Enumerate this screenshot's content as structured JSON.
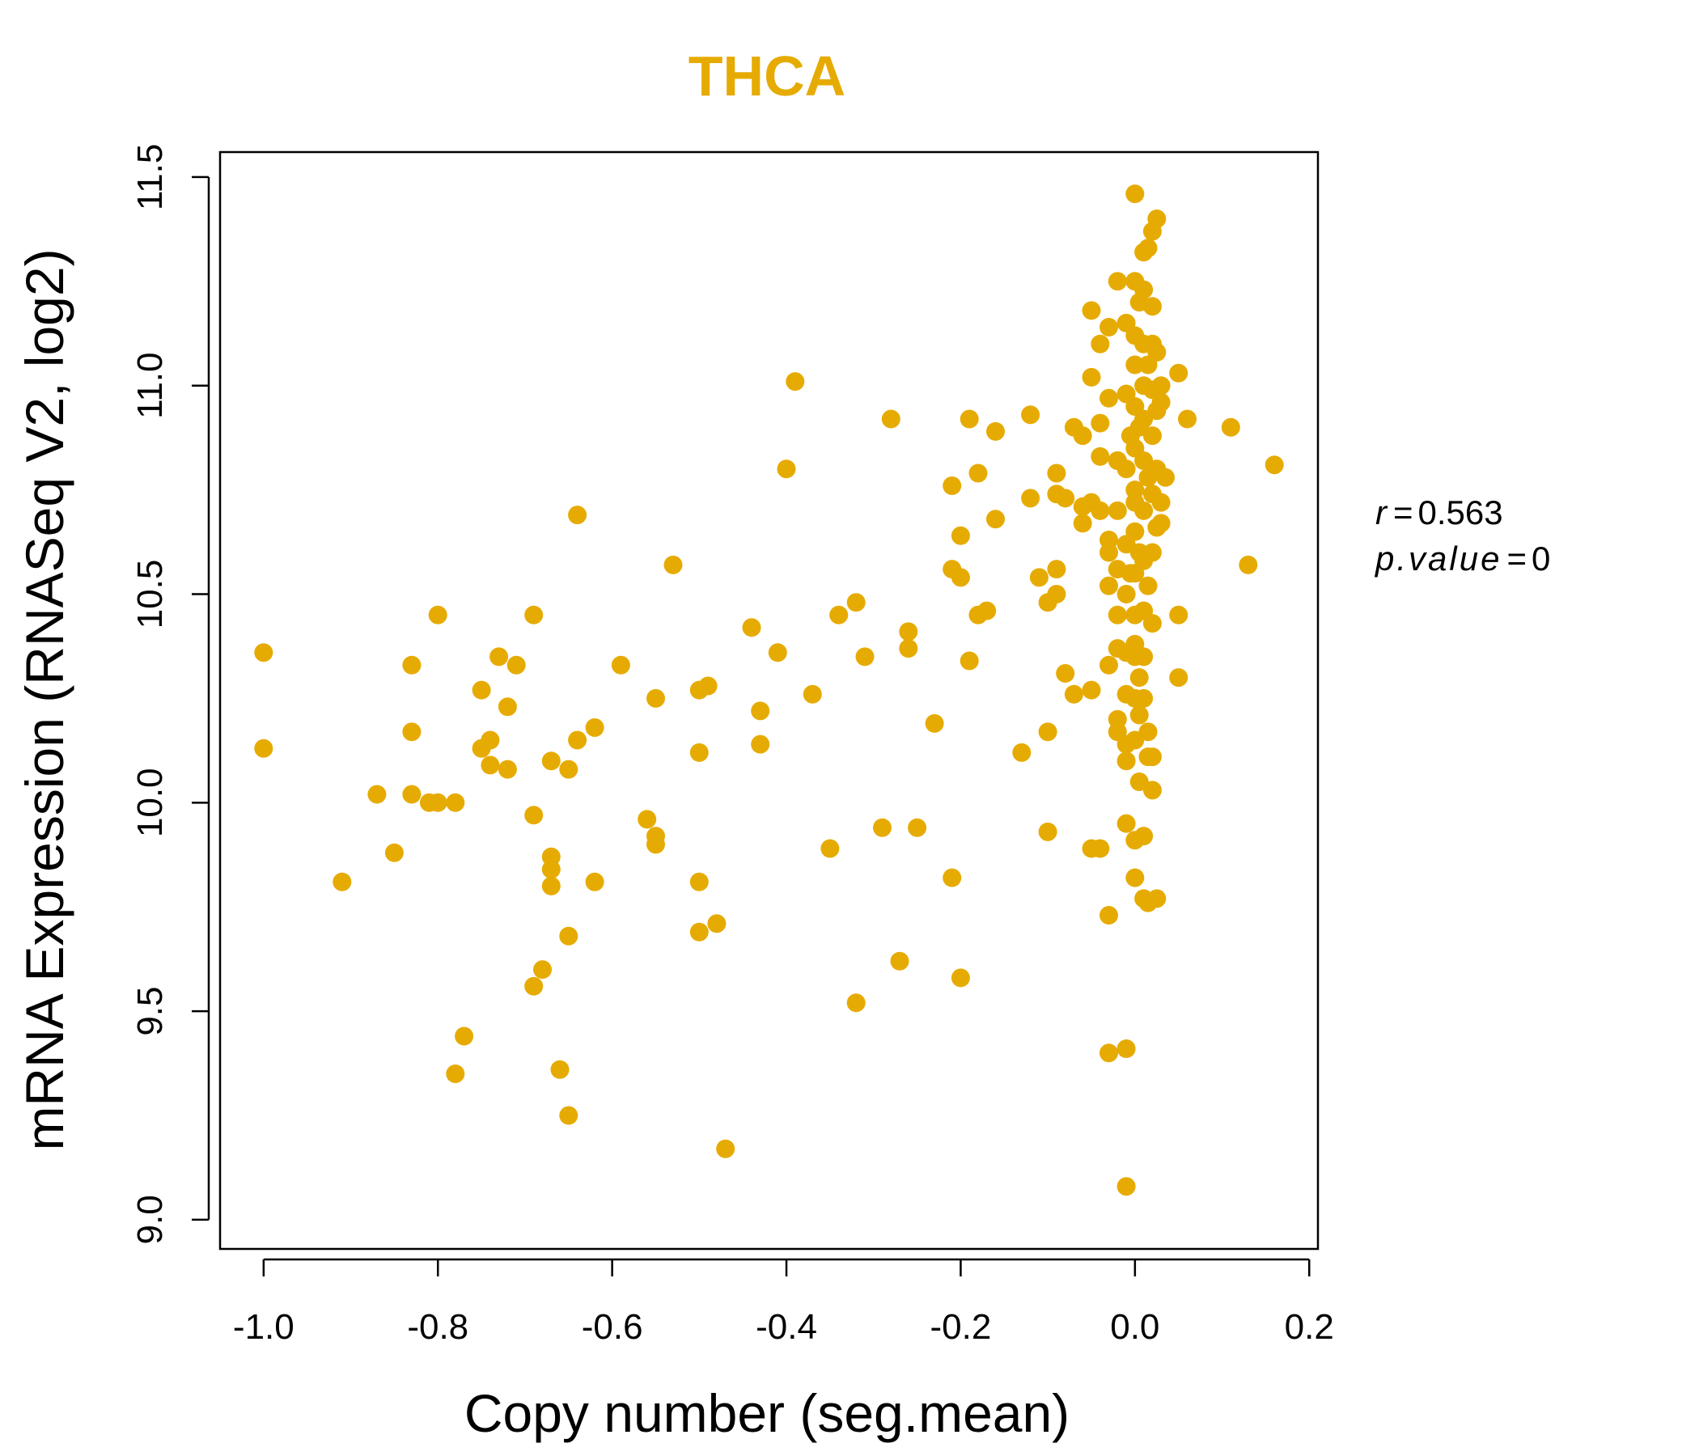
{
  "chart_data": {
    "type": "scatter",
    "title": "THCA",
    "xlabel": "Copy number (seg.mean)",
    "ylabel": "mRNA Expression (RNASeq V2, log2)",
    "xlim": [
      -1.05,
      0.21
    ],
    "ylim": [
      8.93,
      11.56
    ],
    "xticks": [
      "-1.0",
      "-0.8",
      "-0.6",
      "-0.4",
      "-0.2",
      "0.0",
      "0.2"
    ],
    "yticks": [
      "9.0",
      "9.5",
      "10.0",
      "10.5",
      "11.0",
      "11.5"
    ],
    "stats": {
      "r_label": "r",
      "r_value": "0.563",
      "p_label": "p.value",
      "p_value": "0"
    },
    "colors": {
      "title": "#E6AB02",
      "points": "#E6AB02",
      "axis": "#000000"
    },
    "points": [
      [
        -1.0,
        10.36
      ],
      [
        -1.0,
        10.13
      ],
      [
        -0.91,
        9.81
      ],
      [
        -0.87,
        10.02
      ],
      [
        -0.85,
        9.88
      ],
      [
        -0.83,
        10.33
      ],
      [
        -0.83,
        10.17
      ],
      [
        -0.83,
        10.02
      ],
      [
        -0.81,
        10.0
      ],
      [
        -0.8,
        10.45
      ],
      [
        -0.8,
        10.0
      ],
      [
        -0.78,
        10.0
      ],
      [
        -0.78,
        9.35
      ],
      [
        -0.77,
        9.44
      ],
      [
        -0.75,
        10.27
      ],
      [
        -0.75,
        10.13
      ],
      [
        -0.74,
        10.09
      ],
      [
        -0.74,
        10.15
      ],
      [
        -0.73,
        10.35
      ],
      [
        -0.72,
        10.23
      ],
      [
        -0.72,
        10.08
      ],
      [
        -0.71,
        10.33
      ],
      [
        -0.69,
        10.45
      ],
      [
        -0.69,
        9.97
      ],
      [
        -0.69,
        9.56
      ],
      [
        -0.68,
        9.6
      ],
      [
        -0.67,
        9.87
      ],
      [
        -0.67,
        9.84
      ],
      [
        -0.67,
        9.8
      ],
      [
        -0.67,
        10.1
      ],
      [
        -0.66,
        9.36
      ],
      [
        -0.65,
        9.68
      ],
      [
        -0.65,
        9.25
      ],
      [
        -0.65,
        10.08
      ],
      [
        -0.64,
        10.15
      ],
      [
        -0.64,
        10.69
      ],
      [
        -0.62,
        10.18
      ],
      [
        -0.62,
        9.81
      ],
      [
        -0.59,
        10.33
      ],
      [
        -0.56,
        9.96
      ],
      [
        -0.55,
        9.92
      ],
      [
        -0.55,
        9.9
      ],
      [
        -0.55,
        10.25
      ],
      [
        -0.53,
        10.57
      ],
      [
        -0.5,
        9.81
      ],
      [
        -0.5,
        9.69
      ],
      [
        -0.5,
        10.27
      ],
      [
        -0.5,
        10.12
      ],
      [
        -0.49,
        10.28
      ],
      [
        -0.48,
        9.71
      ],
      [
        -0.47,
        9.17
      ],
      [
        -0.44,
        10.42
      ],
      [
        -0.43,
        10.22
      ],
      [
        -0.43,
        10.14
      ],
      [
        -0.41,
        10.36
      ],
      [
        -0.4,
        10.8
      ],
      [
        -0.39,
        11.01
      ],
      [
        -0.37,
        10.26
      ],
      [
        -0.35,
        9.89
      ],
      [
        -0.34,
        10.45
      ],
      [
        -0.32,
        9.52
      ],
      [
        -0.32,
        10.48
      ],
      [
        -0.31,
        10.35
      ],
      [
        -0.29,
        9.94
      ],
      [
        -0.28,
        10.92
      ],
      [
        -0.27,
        9.62
      ],
      [
        -0.26,
        10.41
      ],
      [
        -0.26,
        10.37
      ],
      [
        -0.25,
        9.94
      ],
      [
        -0.23,
        10.19
      ],
      [
        -0.21,
        10.76
      ],
      [
        -0.21,
        10.56
      ],
      [
        -0.21,
        9.82
      ],
      [
        -0.2,
        9.58
      ],
      [
        -0.2,
        10.54
      ],
      [
        -0.2,
        10.64
      ],
      [
        -0.19,
        10.92
      ],
      [
        -0.19,
        10.34
      ],
      [
        -0.18,
        10.79
      ],
      [
        -0.18,
        10.45
      ],
      [
        -0.17,
        10.46
      ],
      [
        -0.16,
        10.89
      ],
      [
        -0.16,
        10.68
      ],
      [
        -0.13,
        10.12
      ],
      [
        -0.12,
        10.93
      ],
      [
        -0.12,
        10.73
      ],
      [
        -0.11,
        10.54
      ],
      [
        -0.1,
        10.17
      ],
      [
        -0.1,
        9.93
      ],
      [
        -0.1,
        10.48
      ],
      [
        -0.09,
        10.79
      ],
      [
        -0.09,
        10.5
      ],
      [
        -0.09,
        10.56
      ],
      [
        -0.09,
        10.74
      ],
      [
        -0.08,
        10.73
      ],
      [
        -0.08,
        10.31
      ],
      [
        -0.07,
        10.26
      ],
      [
        -0.07,
        10.9
      ],
      [
        -0.06,
        10.88
      ],
      [
        -0.06,
        10.67
      ],
      [
        -0.06,
        10.71
      ],
      [
        -0.05,
        11.18
      ],
      [
        -0.05,
        11.02
      ],
      [
        -0.05,
        10.27
      ],
      [
        -0.05,
        9.89
      ],
      [
        -0.05,
        10.72
      ],
      [
        -0.04,
        10.91
      ],
      [
        -0.04,
        11.1
      ],
      [
        -0.04,
        9.89
      ],
      [
        -0.04,
        10.83
      ],
      [
        -0.04,
        10.7
      ],
      [
        -0.03,
        10.97
      ],
      [
        -0.03,
        10.63
      ],
      [
        -0.03,
        10.52
      ],
      [
        -0.03,
        10.33
      ],
      [
        -0.03,
        9.73
      ],
      [
        -0.03,
        9.4
      ],
      [
        -0.03,
        11.14
      ],
      [
        -0.03,
        10.6
      ],
      [
        -0.02,
        11.25
      ],
      [
        -0.02,
        10.82
      ],
      [
        -0.02,
        10.45
      ],
      [
        -0.02,
        10.2
      ],
      [
        -0.02,
        10.17
      ],
      [
        -0.02,
        10.37
      ],
      [
        -0.02,
        10.82
      ],
      [
        -0.02,
        10.56
      ],
      [
        -0.02,
        10.7
      ],
      [
        -0.01,
        11.15
      ],
      [
        -0.01,
        10.8
      ],
      [
        -0.01,
        10.5
      ],
      [
        -0.01,
        10.36
      ],
      [
        -0.01,
        10.14
      ],
      [
        -0.01,
        9.95
      ],
      [
        -0.01,
        9.41
      ],
      [
        -0.01,
        9.08
      ],
      [
        -0.01,
        10.98
      ],
      [
        -0.01,
        10.62
      ],
      [
        -0.01,
        10.26
      ],
      [
        -0.01,
        10.1
      ],
      [
        -0.005,
        10.88
      ],
      [
        -0.005,
        10.55
      ],
      [
        0.0,
        11.46
      ],
      [
        0.0,
        11.25
      ],
      [
        0.0,
        11.05
      ],
      [
        0.0,
        10.95
      ],
      [
        0.0,
        10.85
      ],
      [
        0.0,
        10.75
      ],
      [
        0.0,
        10.65
      ],
      [
        0.0,
        10.55
      ],
      [
        0.0,
        10.45
      ],
      [
        0.0,
        10.35
      ],
      [
        0.0,
        10.25
      ],
      [
        0.0,
        10.15
      ],
      [
        0.0,
        9.91
      ],
      [
        0.0,
        9.82
      ],
      [
        0.0,
        11.12
      ],
      [
        0.0,
        10.72
      ],
      [
        0.0,
        10.38
      ],
      [
        0.005,
        11.2
      ],
      [
        0.005,
        10.9
      ],
      [
        0.005,
        10.6
      ],
      [
        0.005,
        10.3
      ],
      [
        0.005,
        10.05
      ],
      [
        0.005,
        10.21
      ],
      [
        0.01,
        11.32
      ],
      [
        0.01,
        11.23
      ],
      [
        0.01,
        11.1
      ],
      [
        0.01,
        11.0
      ],
      [
        0.01,
        10.92
      ],
      [
        0.01,
        10.82
      ],
      [
        0.01,
        10.7
      ],
      [
        0.01,
        10.58
      ],
      [
        0.01,
        10.46
      ],
      [
        0.01,
        10.35
      ],
      [
        0.01,
        10.25
      ],
      [
        0.01,
        9.92
      ],
      [
        0.01,
        9.77
      ],
      [
        0.015,
        11.33
      ],
      [
        0.015,
        11.05
      ],
      [
        0.015,
        10.78
      ],
      [
        0.015,
        10.52
      ],
      [
        0.015,
        10.17
      ],
      [
        0.015,
        9.76
      ],
      [
        0.015,
        10.11
      ],
      [
        0.02,
        11.37
      ],
      [
        0.02,
        11.19
      ],
      [
        0.02,
        11.1
      ],
      [
        0.02,
        10.99
      ],
      [
        0.02,
        10.88
      ],
      [
        0.02,
        10.74
      ],
      [
        0.02,
        10.6
      ],
      [
        0.02,
        10.43
      ],
      [
        0.02,
        10.03
      ],
      [
        0.02,
        10.11
      ],
      [
        0.025,
        11.4
      ],
      [
        0.025,
        11.08
      ],
      [
        0.025,
        10.94
      ],
      [
        0.025,
        10.8
      ],
      [
        0.025,
        10.66
      ],
      [
        0.025,
        9.77
      ],
      [
        0.03,
        10.67
      ],
      [
        0.03,
        10.96
      ],
      [
        0.03,
        10.72
      ],
      [
        0.03,
        11.0
      ],
      [
        0.035,
        10.78
      ],
      [
        0.05,
        10.45
      ],
      [
        0.05,
        10.3
      ],
      [
        0.05,
        11.03
      ],
      [
        0.06,
        10.92
      ],
      [
        0.11,
        10.9
      ],
      [
        0.13,
        10.57
      ],
      [
        0.16,
        10.81
      ]
    ]
  }
}
